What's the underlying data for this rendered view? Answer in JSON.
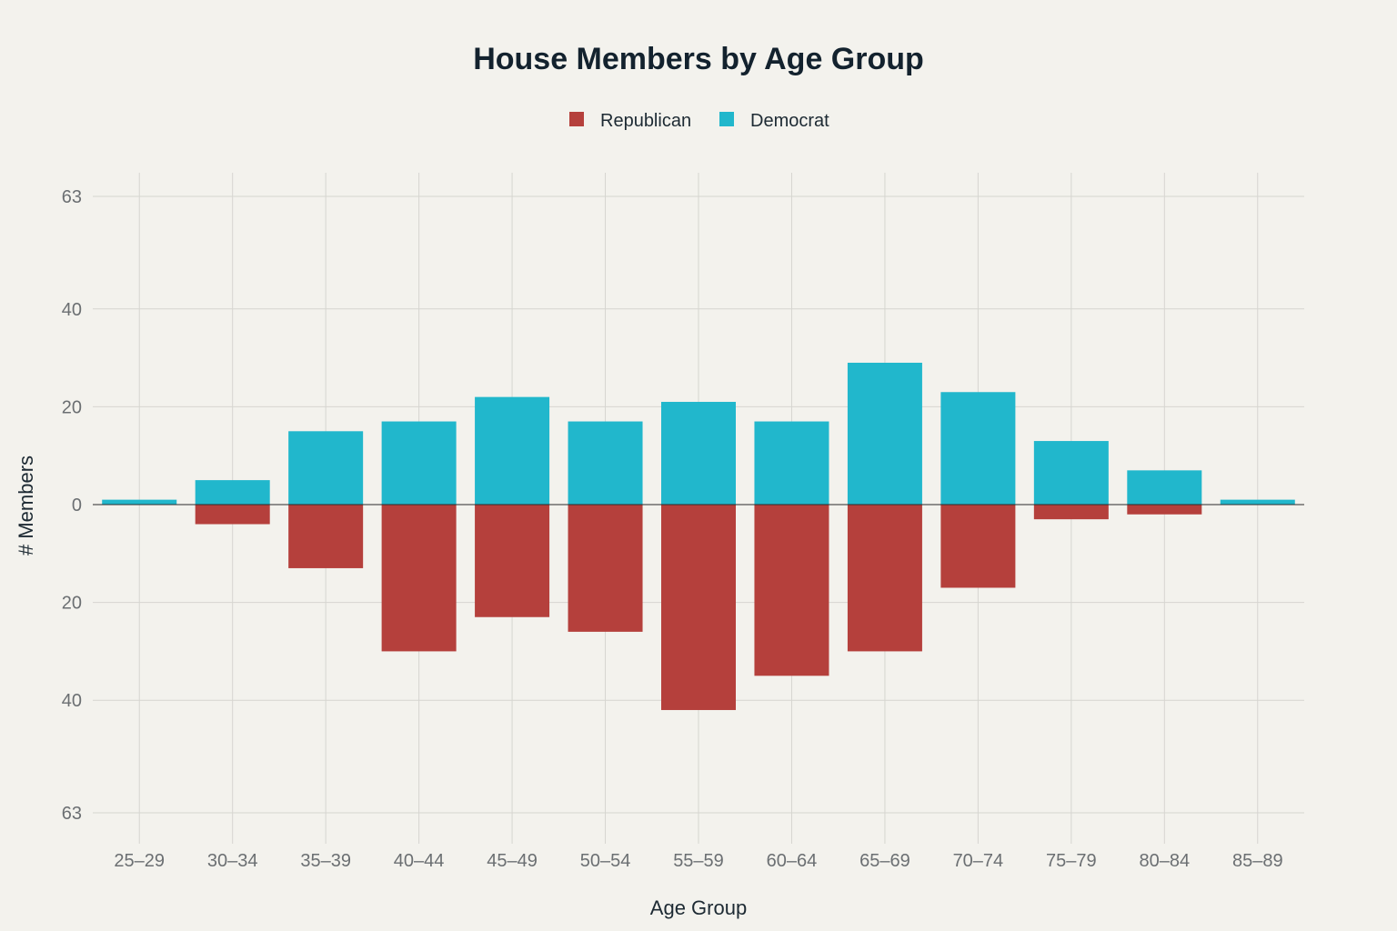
{
  "chart_data": {
    "type": "bar",
    "title": "House Members by Age Group",
    "xlabel": "Age Group",
    "ylabel": "# Members",
    "categories": [
      "25–29",
      "30–34",
      "35–39",
      "40–44",
      "45–49",
      "50–54",
      "55–59",
      "60–64",
      "65–69",
      "70–74",
      "75–79",
      "80–84",
      "85–89"
    ],
    "series": [
      {
        "name": "Republican",
        "color": "#b5403c",
        "direction": "down",
        "values": [
          0,
          4,
          13,
          30,
          23,
          26,
          42,
          35,
          30,
          17,
          3,
          2,
          0
        ]
      },
      {
        "name": "Democrat",
        "color": "#21b7cc",
        "direction": "up",
        "values": [
          1,
          5,
          15,
          17,
          22,
          17,
          21,
          17,
          29,
          23,
          13,
          7,
          1
        ]
      }
    ],
    "ylim": [
      -63,
      63
    ],
    "y_tick_labels": [
      "63",
      "40",
      "20",
      "0",
      "20",
      "40",
      "63"
    ],
    "y_tick_values": [
      63,
      40,
      20,
      0,
      -20,
      -40,
      -63
    ],
    "legend_position": "top-center",
    "grid": true
  }
}
